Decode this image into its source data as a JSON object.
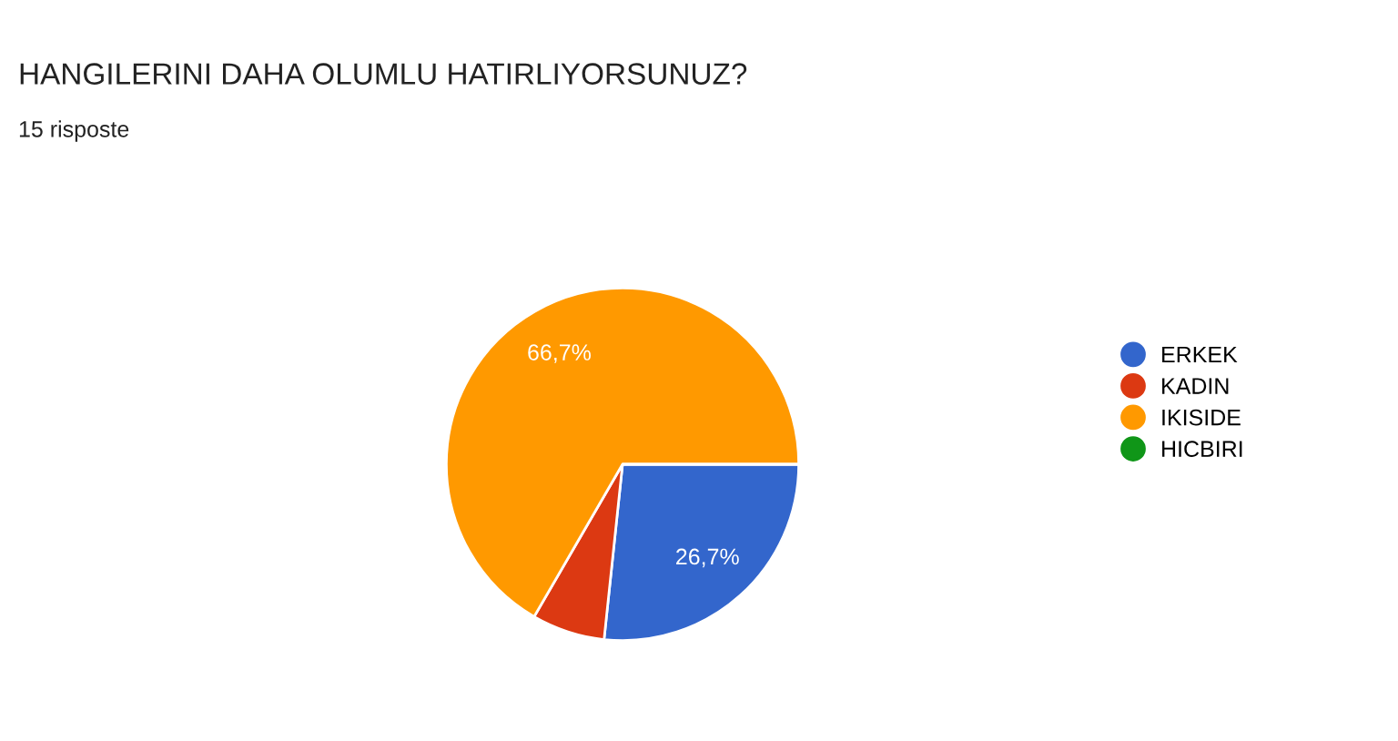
{
  "chart_data": {
    "type": "pie",
    "title": "HANGILERINI DAHA OLUMLU HATIRLIYORSUNUZ?",
    "subtitle": "15 risposte",
    "categories": [
      "ERKEK",
      "KADIN",
      "IKISIDE",
      "HICBIRI"
    ],
    "values": [
      26.7,
      6.7,
      66.7,
      0
    ],
    "colors": [
      "#3366cc",
      "#dc3912",
      "#ff9900",
      "#109618"
    ],
    "value_labels": [
      "26,7%",
      null,
      "66,7%",
      null
    ],
    "legend": "right"
  }
}
